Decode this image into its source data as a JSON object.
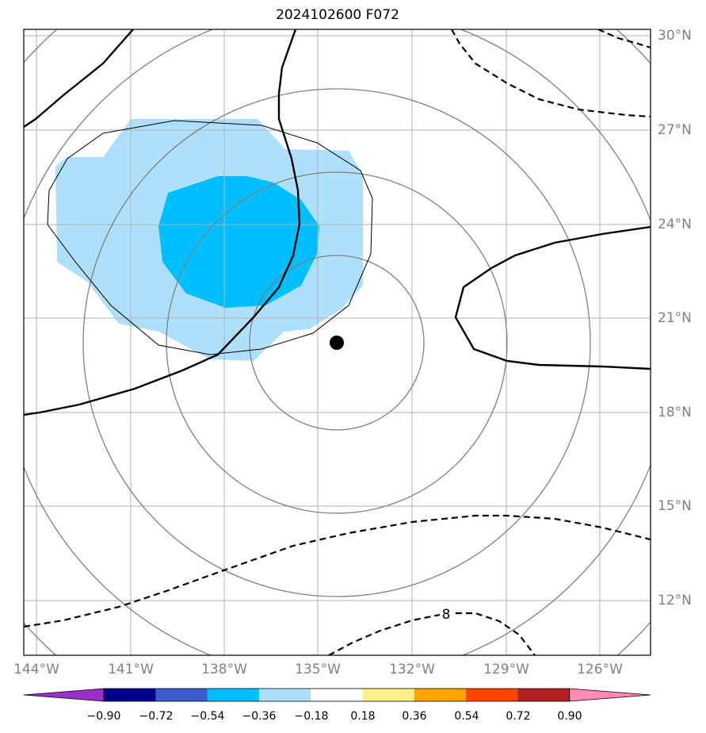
{
  "title": "2024102600 F072",
  "map": {
    "lon_range": [
      -145,
      -124
    ],
    "lat_range": [
      10,
      30.2
    ],
    "grid_lons": [
      -144,
      -141,
      -138,
      -135,
      -132,
      -129,
      -126
    ],
    "grid_lats": [
      12,
      15,
      18,
      21,
      24,
      27,
      30
    ],
    "lon_labels": [
      "144°W",
      "141°W",
      "138°W",
      "135°W",
      "132°W",
      "129°W",
      "126°W"
    ],
    "lat_labels": [
      "12°N",
      "15°N",
      "18°N",
      "21°N",
      "24°N",
      "27°N",
      "30°N"
    ],
    "grid_color": "#b0b0b0",
    "storm_center": {
      "lon": -134.4,
      "lat": 20.2
    },
    "contour_label": "8",
    "colors": {
      "light_blue": "#aee0fb",
      "medium_blue": "#00bfff",
      "circles": "#808080",
      "contours": "#000000"
    }
  },
  "colorbar": {
    "colors": [
      "#9932cc",
      "#00008b",
      "#3a5bcc",
      "#00bfff",
      "#aee0fb",
      "#ffffff",
      "#fff08c",
      "#ffa500",
      "#ff4500",
      "#b22222",
      "#ff88b4"
    ],
    "tick_labels": [
      "−0.90",
      "−0.72",
      "−0.54",
      "−0.36",
      "−0.18",
      "0.18",
      "0.36",
      "0.54",
      "0.72",
      "0.90"
    ]
  }
}
